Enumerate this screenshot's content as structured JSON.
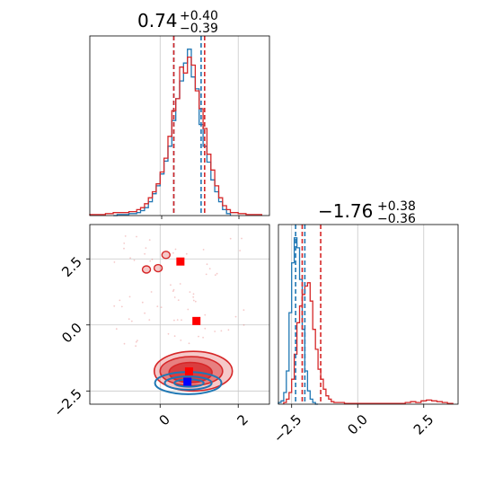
{
  "colors": {
    "blue": "#1f77b4",
    "red": "#d62728",
    "marker_red": "#ff0000",
    "marker_blue": "#0000ff",
    "grid": "#c8c8c8"
  },
  "chart_data": [
    {
      "type": "histogram",
      "panel": "top-left",
      "title_main": "0.74",
      "title_sup": "+0.40",
      "title_sub": "−0.39",
      "xlim": [
        -1.8,
        2.8
      ],
      "xgrid": [
        0,
        2
      ],
      "series": [
        {
          "color": "blue",
          "bins": [
            -1.2,
            -1.1,
            -1.0,
            -0.9,
            -0.8,
            -0.7,
            -0.6,
            -0.5,
            -0.4,
            -0.3,
            -0.2,
            -0.1,
            0.0,
            0.1,
            0.2,
            0.3,
            0.4,
            0.5,
            0.6,
            0.7,
            0.8,
            0.9,
            1.0,
            1.1,
            1.2,
            1.3,
            1.4,
            1.5,
            1.6,
            1.7
          ],
          "counts": [
            0,
            1,
            1,
            1,
            2,
            2,
            3,
            5,
            8,
            14,
            22,
            30,
            42,
            55,
            70,
            96,
            118,
            136,
            154,
            168,
            140,
            128,
            92,
            70,
            54,
            36,
            24,
            14,
            6,
            2
          ],
          "quantiles": [
            0.35,
            1.05
          ]
        },
        {
          "color": "red",
          "bins": [
            -1.8,
            -1.6,
            -1.4,
            -1.2,
            -1.0,
            -0.8,
            -0.6,
            -0.5,
            -0.4,
            -0.3,
            -0.2,
            -0.1,
            0.0,
            0.1,
            0.2,
            0.3,
            0.4,
            0.5,
            0.6,
            0.7,
            0.8,
            0.9,
            1.0,
            1.1,
            1.2,
            1.3,
            1.4,
            1.5,
            1.6,
            1.7,
            1.8,
            2.0,
            2.2,
            2.4
          ],
          "counts": [
            1,
            1,
            2,
            3,
            3,
            4,
            6,
            8,
            12,
            18,
            24,
            32,
            44,
            58,
            80,
            106,
            118,
            150,
            144,
            160,
            152,
            126,
            108,
            88,
            62,
            46,
            30,
            18,
            10,
            6,
            3,
            2,
            1,
            1
          ],
          "quantiles": [
            0.35,
            1.14
          ]
        }
      ]
    },
    {
      "type": "histogram",
      "panel": "bottom-right",
      "title_main": "−1.76",
      "title_sup": "+0.38",
      "title_sub": "−0.36",
      "xlim": [
        -3.0,
        3.8
      ],
      "xticks": [
        -2.5,
        0.0,
        2.5
      ],
      "xticklabels": [
        "−2.5",
        "0.0",
        "2.5"
      ],
      "series": [
        {
          "color": "blue",
          "bins": [
            -3.0,
            -2.9,
            -2.8,
            -2.7,
            -2.6,
            -2.5,
            -2.4,
            -2.3,
            -2.2,
            -2.1,
            -2.0,
            -1.9,
            -1.8,
            -1.7,
            -1.6
          ],
          "counts": [
            2,
            4,
            14,
            40,
            110,
            170,
            200,
            188,
            150,
            90,
            40,
            16,
            6,
            2,
            0
          ],
          "quantiles": [
            -2.35,
            -2.0
          ]
        },
        {
          "color": "red",
          "bins": [
            -2.8,
            -2.7,
            -2.6,
            -2.5,
            -2.4,
            -2.3,
            -2.2,
            -2.1,
            -2.0,
            -1.9,
            -1.8,
            -1.7,
            -1.6,
            -1.5,
            -1.4,
            -1.3,
            -1.2,
            -1.1,
            -1.0,
            -0.9,
            -0.5,
            0.0,
            1.8,
            2.0,
            2.2,
            2.4,
            2.6,
            2.8,
            3.0,
            3.2,
            3.4
          ],
          "counts": [
            2,
            6,
            14,
            30,
            60,
            98,
            118,
            132,
            142,
            146,
            124,
            90,
            66,
            42,
            30,
            18,
            10,
            6,
            3,
            2,
            1,
            1,
            2,
            3,
            2,
            4,
            5,
            4,
            3,
            2,
            1
          ],
          "quantiles": [
            -2.1,
            -1.4
          ]
        }
      ]
    },
    {
      "type": "contour",
      "panel": "bottom-left",
      "xlim": [
        -1.8,
        2.8
      ],
      "ylim": [
        -3.0,
        3.8
      ],
      "xticks": [
        0,
        2
      ],
      "xticklabels": [
        "0",
        "2"
      ],
      "yticks": [
        -2.5,
        0.0,
        2.5
      ],
      "yticklabels": [
        "−2.5",
        "0.0",
        "2.5"
      ],
      "red_contours": [
        {
          "cx": 0.85,
          "cy": -1.75,
          "rx": 2.0,
          "ry": 0.75
        },
        {
          "cx": 0.8,
          "cy": -1.75,
          "rx": 1.6,
          "ry": 0.55
        },
        {
          "cx": 0.78,
          "cy": -1.8,
          "rx": 1.1,
          "ry": 0.38
        }
      ],
      "blue_contours": [
        {
          "cx": 0.72,
          "cy": -2.2,
          "rx": 1.7,
          "ry": 0.42
        },
        {
          "cx": 0.72,
          "cy": -2.2,
          "rx": 1.2,
          "ry": 0.25
        },
        {
          "cx": 0.74,
          "cy": -2.2,
          "rx": 0.75,
          "ry": 0.14
        }
      ],
      "red_islands": [
        {
          "x": -0.05,
          "y": 2.15
        },
        {
          "x": -0.35,
          "y": 2.1
        },
        {
          "x": 0.15,
          "y": 2.65
        }
      ],
      "red_markers": [
        {
          "x": 0.52,
          "y": 2.4
        },
        {
          "x": 0.93,
          "y": 0.15
        },
        {
          "x": 0.74,
          "y": -1.76
        }
      ],
      "blue_markers": [
        {
          "x": 0.7,
          "y": -2.15
        }
      ]
    }
  ]
}
